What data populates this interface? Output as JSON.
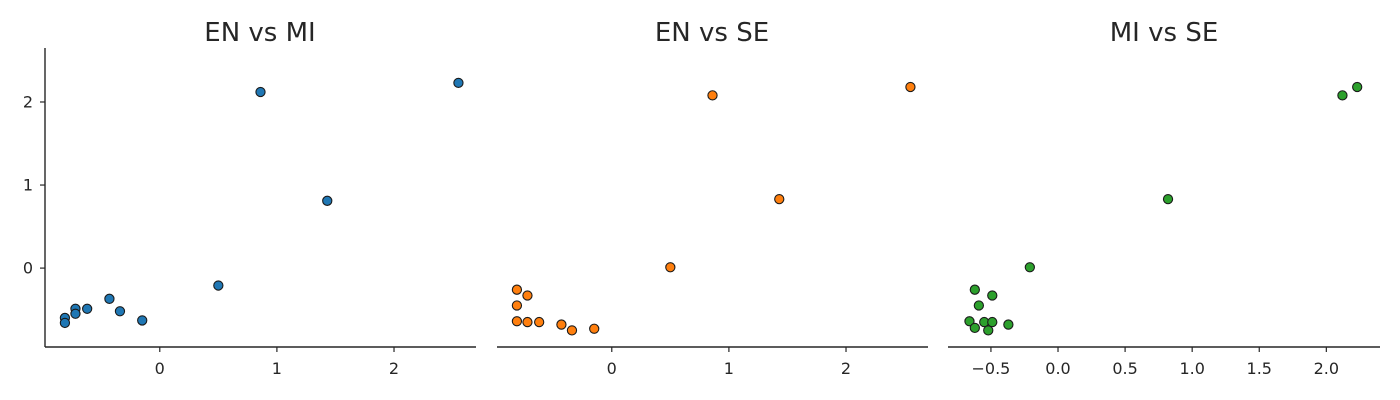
{
  "chart_data": [
    {
      "type": "scatter",
      "title": "EN vs MI",
      "xlabel": "",
      "ylabel": "",
      "color": "#1f77b4",
      "xlim": [
        -0.98,
        2.7
      ],
      "ylim": [
        -0.95,
        2.65
      ],
      "xticks": [
        0,
        1,
        2
      ],
      "yticks": [
        0,
        1,
        2
      ],
      "show_yaxis": true,
      "points": [
        {
          "x": -0.81,
          "y": -0.6
        },
        {
          "x": -0.81,
          "y": -0.66
        },
        {
          "x": -0.72,
          "y": -0.49
        },
        {
          "x": -0.72,
          "y": -0.55
        },
        {
          "x": -0.62,
          "y": -0.49
        },
        {
          "x": -0.43,
          "y": -0.37
        },
        {
          "x": -0.34,
          "y": -0.52
        },
        {
          "x": -0.15,
          "y": -0.63
        },
        {
          "x": 0.5,
          "y": -0.21
        },
        {
          "x": 0.86,
          "y": 2.12
        },
        {
          "x": 1.43,
          "y": 0.81
        },
        {
          "x": 2.55,
          "y": 2.23
        }
      ]
    },
    {
      "type": "scatter",
      "title": "EN vs SE",
      "xlabel": "",
      "ylabel": "",
      "color": "#ff7f0e",
      "xlim": [
        -0.98,
        2.7
      ],
      "ylim": [
        -0.95,
        2.65
      ],
      "xticks": [
        0,
        1,
        2
      ],
      "yticks": [
        0,
        1,
        2
      ],
      "show_yaxis": false,
      "points": [
        {
          "x": -0.81,
          "y": -0.26
        },
        {
          "x": -0.81,
          "y": -0.45
        },
        {
          "x": -0.81,
          "y": -0.64
        },
        {
          "x": -0.72,
          "y": -0.33
        },
        {
          "x": -0.72,
          "y": -0.65
        },
        {
          "x": -0.62,
          "y": -0.65
        },
        {
          "x": -0.43,
          "y": -0.68
        },
        {
          "x": -0.34,
          "y": -0.75
        },
        {
          "x": -0.15,
          "y": -0.73
        },
        {
          "x": 0.5,
          "y": 0.01
        },
        {
          "x": 0.86,
          "y": 2.08
        },
        {
          "x": 1.43,
          "y": 0.83
        },
        {
          "x": 2.55,
          "y": 2.18
        }
      ]
    },
    {
      "type": "scatter",
      "title": "MI vs SE",
      "xlabel": "",
      "ylabel": "",
      "color": "#2ca02c",
      "xlim": [
        -0.82,
        2.4
      ],
      "ylim": [
        -0.95,
        2.65
      ],
      "xticks": [
        -0.5,
        0.0,
        0.5,
        1.0,
        1.5,
        2.0
      ],
      "xtick_labels": [
        "−0.5",
        "0.0",
        "0.5",
        "1.0",
        "1.5",
        "2.0"
      ],
      "yticks": [
        0,
        1,
        2
      ],
      "show_yaxis": false,
      "points": [
        {
          "x": -0.66,
          "y": -0.64
        },
        {
          "x": -0.62,
          "y": -0.26
        },
        {
          "x": -0.62,
          "y": -0.72
        },
        {
          "x": -0.59,
          "y": -0.45
        },
        {
          "x": -0.55,
          "y": -0.65
        },
        {
          "x": -0.52,
          "y": -0.75
        },
        {
          "x": -0.49,
          "y": -0.33
        },
        {
          "x": -0.49,
          "y": -0.65
        },
        {
          "x": -0.37,
          "y": -0.68
        },
        {
          "x": -0.21,
          "y": 0.01
        },
        {
          "x": 0.82,
          "y": 0.83
        },
        {
          "x": 2.12,
          "y": 2.08
        },
        {
          "x": 2.23,
          "y": 2.18
        }
      ]
    }
  ]
}
